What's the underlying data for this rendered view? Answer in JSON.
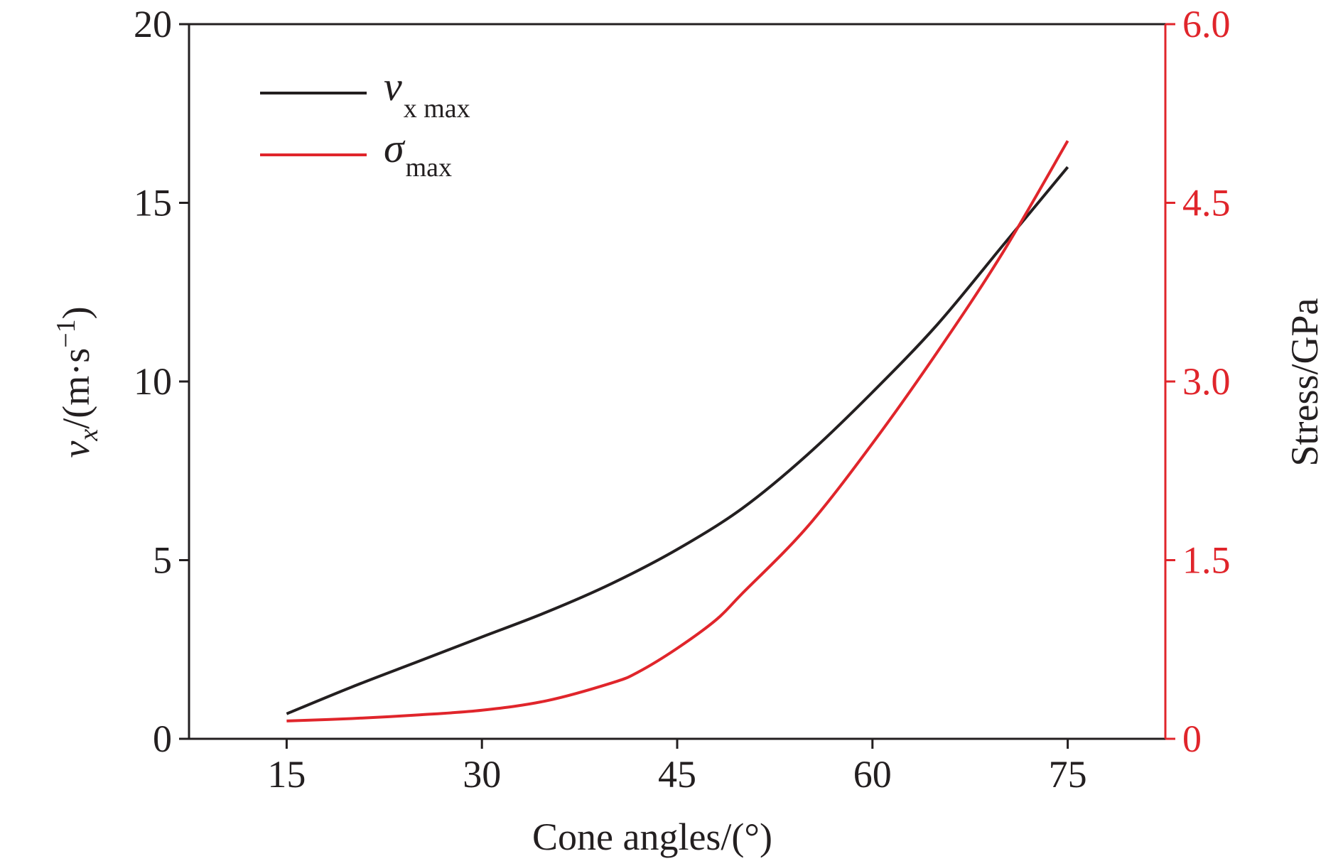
{
  "chart_data": {
    "type": "line",
    "xlabel": "Cone angles/(°)",
    "ylabel_left": {
      "symbol": "v",
      "subscript": "x",
      "unit_prefix": "/(m·s",
      "unit_sup": "−1",
      "unit_suffix": ")"
    },
    "ylabel_right": "Stress/GPa",
    "x_ticks": [
      "15",
      "30",
      "45",
      "60",
      "75"
    ],
    "y_left_ticks": [
      "0",
      "5",
      "10",
      "15",
      "20"
    ],
    "y_right_ticks": [
      "0",
      "1.5",
      "3.0",
      "4.5",
      "6.0"
    ],
    "xlim": [
      7.5,
      82.5
    ],
    "ylim_left": [
      0,
      20
    ],
    "ylim_right": [
      0,
      6.0
    ],
    "grid": false,
    "legend_position": "top-left",
    "colors": {
      "left_axis": "#231f20",
      "right_axis": "#e0252b"
    },
    "series": [
      {
        "name": {
          "symbol": "v",
          "sub": "x max"
        },
        "axis": "left",
        "color": "#231f20",
        "x": [
          15,
          20,
          25,
          30,
          35,
          40,
          45,
          50,
          55,
          60,
          65,
          70,
          75
        ],
        "y": [
          0.7,
          1.45,
          2.15,
          2.85,
          3.55,
          4.35,
          5.3,
          6.45,
          7.95,
          9.7,
          11.6,
          13.8,
          16.0
        ]
      },
      {
        "name": {
          "symbol": "σ",
          "sub": "max"
        },
        "axis": "right",
        "color": "#e0252b",
        "x": [
          15,
          20,
          25,
          30,
          35,
          40,
          42,
          45,
          48,
          50,
          55,
          60,
          65,
          70,
          75
        ],
        "y": [
          0.15,
          0.17,
          0.2,
          0.24,
          0.32,
          0.47,
          0.56,
          0.76,
          1.0,
          1.22,
          1.78,
          2.48,
          3.25,
          4.08,
          5.02
        ]
      }
    ]
  }
}
